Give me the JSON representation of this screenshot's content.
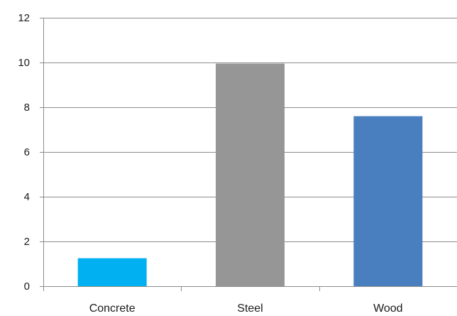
{
  "chart_data": {
    "type": "bar",
    "categories": [
      "Concrete",
      "Steel",
      "Wood"
    ],
    "values": [
      1.25,
      9.95,
      7.6
    ],
    "colors": [
      "#00b0f0",
      "#969696",
      "#4a7fbf"
    ],
    "ylim": [
      0,
      12
    ],
    "yticks": [
      0,
      2,
      4,
      6,
      8,
      10,
      12
    ],
    "grid": true,
    "legend": "none"
  },
  "style": {
    "grid_color": "#8c8c8c",
    "axis_color": "#8c8c8c",
    "text_color": "#1a1a1a"
  }
}
